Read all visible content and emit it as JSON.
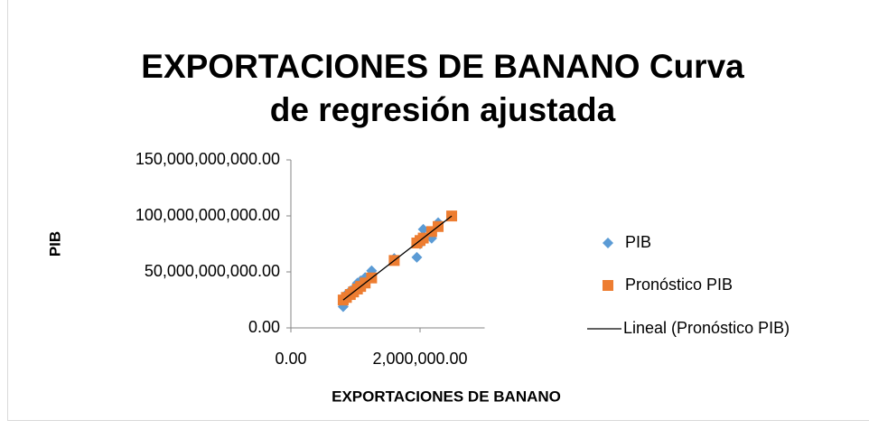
{
  "chart_data": {
    "type": "scatter",
    "title": [
      "EXPORTACIONES DE BANANO Curva",
      "de regresión ajustada"
    ],
    "xlabel": "EXPORTACIONES DE BANANO",
    "ylabel": "PIB",
    "xlim": [
      0,
      3000000
    ],
    "xticks": [
      {
        "value": 0,
        "label": "0.00"
      },
      {
        "value": 2000000,
        "label": "2,000,000.00"
      }
    ],
    "ylim": [
      0,
      150000000000
    ],
    "yticks": [
      {
        "value": 0,
        "label": "0.00"
      },
      {
        "value": 50000000000,
        "label": "50,000,000,000.00"
      },
      {
        "value": 100000000000,
        "label": "100,000,000,000.00"
      },
      {
        "value": 150000000000,
        "label": "150,000,000,000.00"
      }
    ],
    "grid": false,
    "legend": "right",
    "series": [
      {
        "name": "PIB",
        "color": "#5b9bd5",
        "marker": "diamond",
        "x": [
          810000,
          860000,
          920000,
          970000,
          1030000,
          1080000,
          1150000,
          1250000,
          1600000,
          1950000,
          2000000,
          2050000,
          2180000,
          2280000,
          2490000
        ],
        "values": [
          19000000000,
          30000000000,
          33000000000,
          35000000000,
          40000000000,
          42000000000,
          45000000000,
          51000000000,
          62000000000,
          63000000000,
          75000000000,
          88000000000,
          80000000000,
          94000000000,
          100000000000
        ]
      },
      {
        "name": "Pronóstico PIB",
        "color": "#ed7d31",
        "marker": "square",
        "x": [
          810000,
          860000,
          920000,
          970000,
          1030000,
          1080000,
          1150000,
          1250000,
          1600000,
          1950000,
          2000000,
          2050000,
          2180000,
          2280000,
          2490000
        ],
        "values": [
          24900000000,
          27200000000,
          29800000000,
          32100000000,
          34700000000,
          37000000000,
          40100000000,
          44600000000,
          60200000000,
          75800000000,
          78000000000,
          80200000000,
          86000000000,
          90500000000,
          99900000000
        ]
      }
    ],
    "trendline": {
      "name": "Lineal (Pronóstico PIB)",
      "color": "#000000",
      "x": [
        810000,
        2490000
      ],
      "values": [
        24900000000,
        99900000000
      ]
    }
  }
}
